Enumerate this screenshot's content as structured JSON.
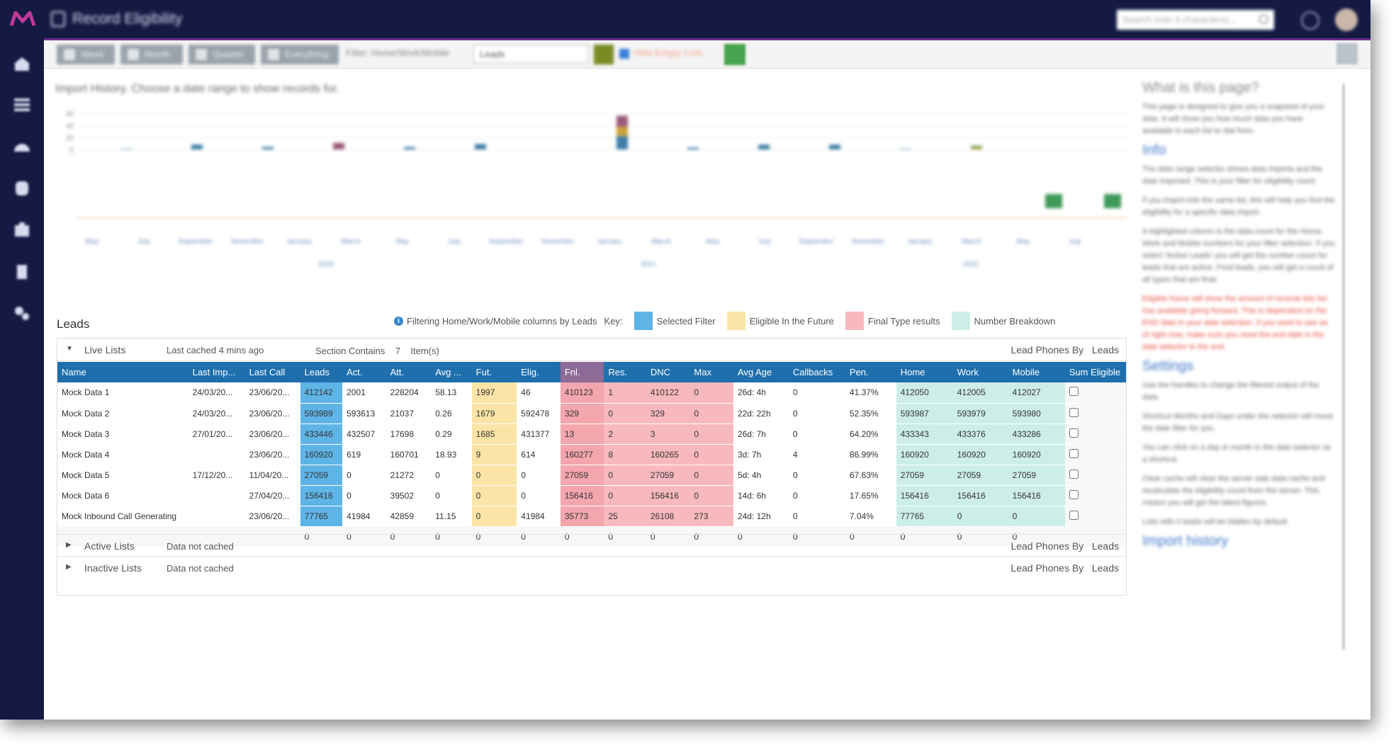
{
  "app": {
    "title": "Record Eligibility",
    "search_placeholder": "Search (min 3 characters)..."
  },
  "toolbar": {
    "buttons": [
      "Week",
      "Month",
      "Quarter",
      "Everything"
    ],
    "filter_label": "Filter: Home/Work/Mobile",
    "filter_value": "Leads",
    "hide_empty_label": "Hide Empty Lists"
  },
  "chart": {
    "title": "Import History. Choose a date range to show records for."
  },
  "chart_data": {
    "type": "bar",
    "ylim": [
      0,
      60
    ],
    "yticks": [
      "60",
      "40",
      "20",
      "0"
    ],
    "month_ticks": [
      "May",
      "July",
      "September",
      "November",
      "January",
      "March",
      "May",
      "July",
      "September",
      "November",
      "January",
      "March",
      "May",
      "July",
      "September",
      "November",
      "January",
      "March",
      "May",
      "July"
    ],
    "year_ticks": [
      "2020",
      "2021",
      "2022"
    ],
    "series": [
      {
        "color": "#3f7fa8",
        "values": [
          1,
          8,
          4,
          0,
          4,
          9,
          0,
          22,
          3,
          8,
          8,
          1,
          0,
          0
        ]
      },
      {
        "color": "#c8a23a",
        "values": [
          0,
          0,
          0,
          0,
          0,
          0,
          0,
          16,
          0,
          0,
          0,
          0,
          3,
          0
        ]
      },
      {
        "color": "#9c5a7a",
        "values": [
          0,
          0,
          0,
          11,
          0,
          0,
          0,
          18,
          0,
          0,
          0,
          0,
          0,
          0
        ]
      },
      {
        "color": "#5a9a5a",
        "values": [
          0,
          0,
          0,
          0,
          0,
          0,
          0,
          0,
          0,
          0,
          0,
          0,
          3,
          0
        ]
      }
    ]
  },
  "leads": {
    "title": "Leads",
    "filter_note": "Filtering Home/Work/Mobile columns by Leads",
    "key_label": "Key:",
    "keys": [
      {
        "label": "Selected Filter",
        "color": "#5fb4e6"
      },
      {
        "label": "Eligible In the Future",
        "color": "#fbe4a6"
      },
      {
        "label": "Final Type results",
        "color": "#f7b9bd"
      },
      {
        "label": "Number Breakdown",
        "color": "#cdeee8"
      }
    ],
    "sections": [
      {
        "name": "Live Lists",
        "cache": "Last cached 4 mins ago",
        "contains_label": "Section Contains",
        "count": "7",
        "items_label": "Item(s)",
        "right": "Lead Phones By   Leads",
        "expanded": true
      },
      {
        "name": "Active Lists",
        "cache": "Data not cached",
        "right": "Lead Phones By   Leads",
        "expanded": false
      },
      {
        "name": "Inactive Lists",
        "cache": "Data not cached",
        "right": "Lead Phones By   Leads",
        "expanded": false
      }
    ],
    "columns": [
      "Name",
      "Last Imp...",
      "Last Call",
      "Leads",
      "Act.",
      "Att.",
      "Avg ...",
      "Fut.",
      "Elig.",
      "Fnl.",
      "Res.",
      "DNC",
      "Max",
      "Avg Age",
      "Callbacks",
      "Pen.",
      "Home",
      "Work",
      "Mobile",
      "Sum Eligible"
    ],
    "rows": [
      [
        "Mock Data 1",
        "24/03/20...",
        "23/06/20...",
        "412142",
        "2001",
        "228204",
        "58.13",
        "1997",
        "46",
        "410123",
        "1",
        "410122",
        "0",
        "26d: 4h",
        "0",
        "41.37%",
        "412050",
        "412005",
        "412027"
      ],
      [
        "Mock Data 2",
        "24/03/20...",
        "23/06/20...",
        "593989",
        "593613",
        "21037",
        "0.26",
        "1679",
        "592478",
        "329",
        "0",
        "329",
        "0",
        "22d: 22h",
        "0",
        "52.35%",
        "593987",
        "593979",
        "593980"
      ],
      [
        "Mock Data 3",
        "27/01/20...",
        "23/06/20...",
        "433446",
        "432507",
        "17698",
        "0.29",
        "1685",
        "431377",
        "13",
        "2",
        "3",
        "0",
        "26d: 7h",
        "0",
        "64.20%",
        "433343",
        "433376",
        "433286"
      ],
      [
        "Mock Data 4",
        "",
        "23/06/20...",
        "160920",
        "619",
        "160701",
        "18.93",
        "9",
        "614",
        "160277",
        "8",
        "160265",
        "0",
        "3d: 7h",
        "4",
        "86.99%",
        "160920",
        "160920",
        "160920"
      ],
      [
        "Mock Data 5",
        "17/12/20...",
        "11/04/20...",
        "27059",
        "0",
        "21272",
        "0",
        "0",
        "0",
        "27059",
        "0",
        "27059",
        "0",
        "5d: 4h",
        "0",
        "67.63%",
        "27059",
        "27059",
        "27059"
      ],
      [
        "Mock Data 6",
        "",
        "27/04/20...",
        "156416",
        "0",
        "39502",
        "0",
        "0",
        "0",
        "156416",
        "0",
        "156416",
        "0",
        "14d: 6h",
        "0",
        "17.65%",
        "156416",
        "156416",
        "156416"
      ],
      [
        "Mock Inbound Call Generating",
        "",
        "23/06/20...",
        "77765",
        "41984",
        "42859",
        "11.15",
        "0",
        "41984",
        "35773",
        "25",
        "26108",
        "273",
        "24d: 12h",
        "0",
        "7.04%",
        "77765",
        "0",
        "0"
      ]
    ],
    "totals": [
      "",
      "",
      "",
      "0",
      "0",
      "0",
      "0",
      "0",
      "0",
      "0",
      "0",
      "0",
      "0",
      "0",
      "0",
      "0",
      "0",
      "0",
      "0"
    ]
  },
  "help": {
    "what_title": "What is this page?",
    "what_text": "This page is designed to give you a snapshot of your data. It will show you how much data you have available in each list to dial from.",
    "info_title": "Info",
    "info_p1": "The date range selector shows data imports and the date imported. This is your filter for eligibility count.",
    "info_p2": "If you import into the same list, this will help you find the eligibility for a specific data import.",
    "info_p3": "A highlighted column is the data count for the Home, Work and Mobile numbers for your filter selection. If you select 'Active Leads' you will get the number count for leads that are active. Final leads, you will get a count of all types that are final.",
    "info_red": "Eligible future will show the amount of records this list has available going forward. This is dependent on the END date in your date selection. If you want to see as of right now, make sure you reset the end date in the date selector to the end.",
    "settings_title": "Settings",
    "settings_p1": "Use the handles to change the filtered output of the data.",
    "settings_p2": "Shortcut Months and Days under the selector will move the date filter for you.",
    "settings_p3": "You can click on a day or month in the date selector as a shortcut.",
    "settings_p4": "Clear cache will clear the server side data cache and recalculate the eligibility count from the server. This means you will get the latest figures.",
    "settings_p5": "Lists with 0 leads will be hidden by default.",
    "import_title": "Import history"
  }
}
